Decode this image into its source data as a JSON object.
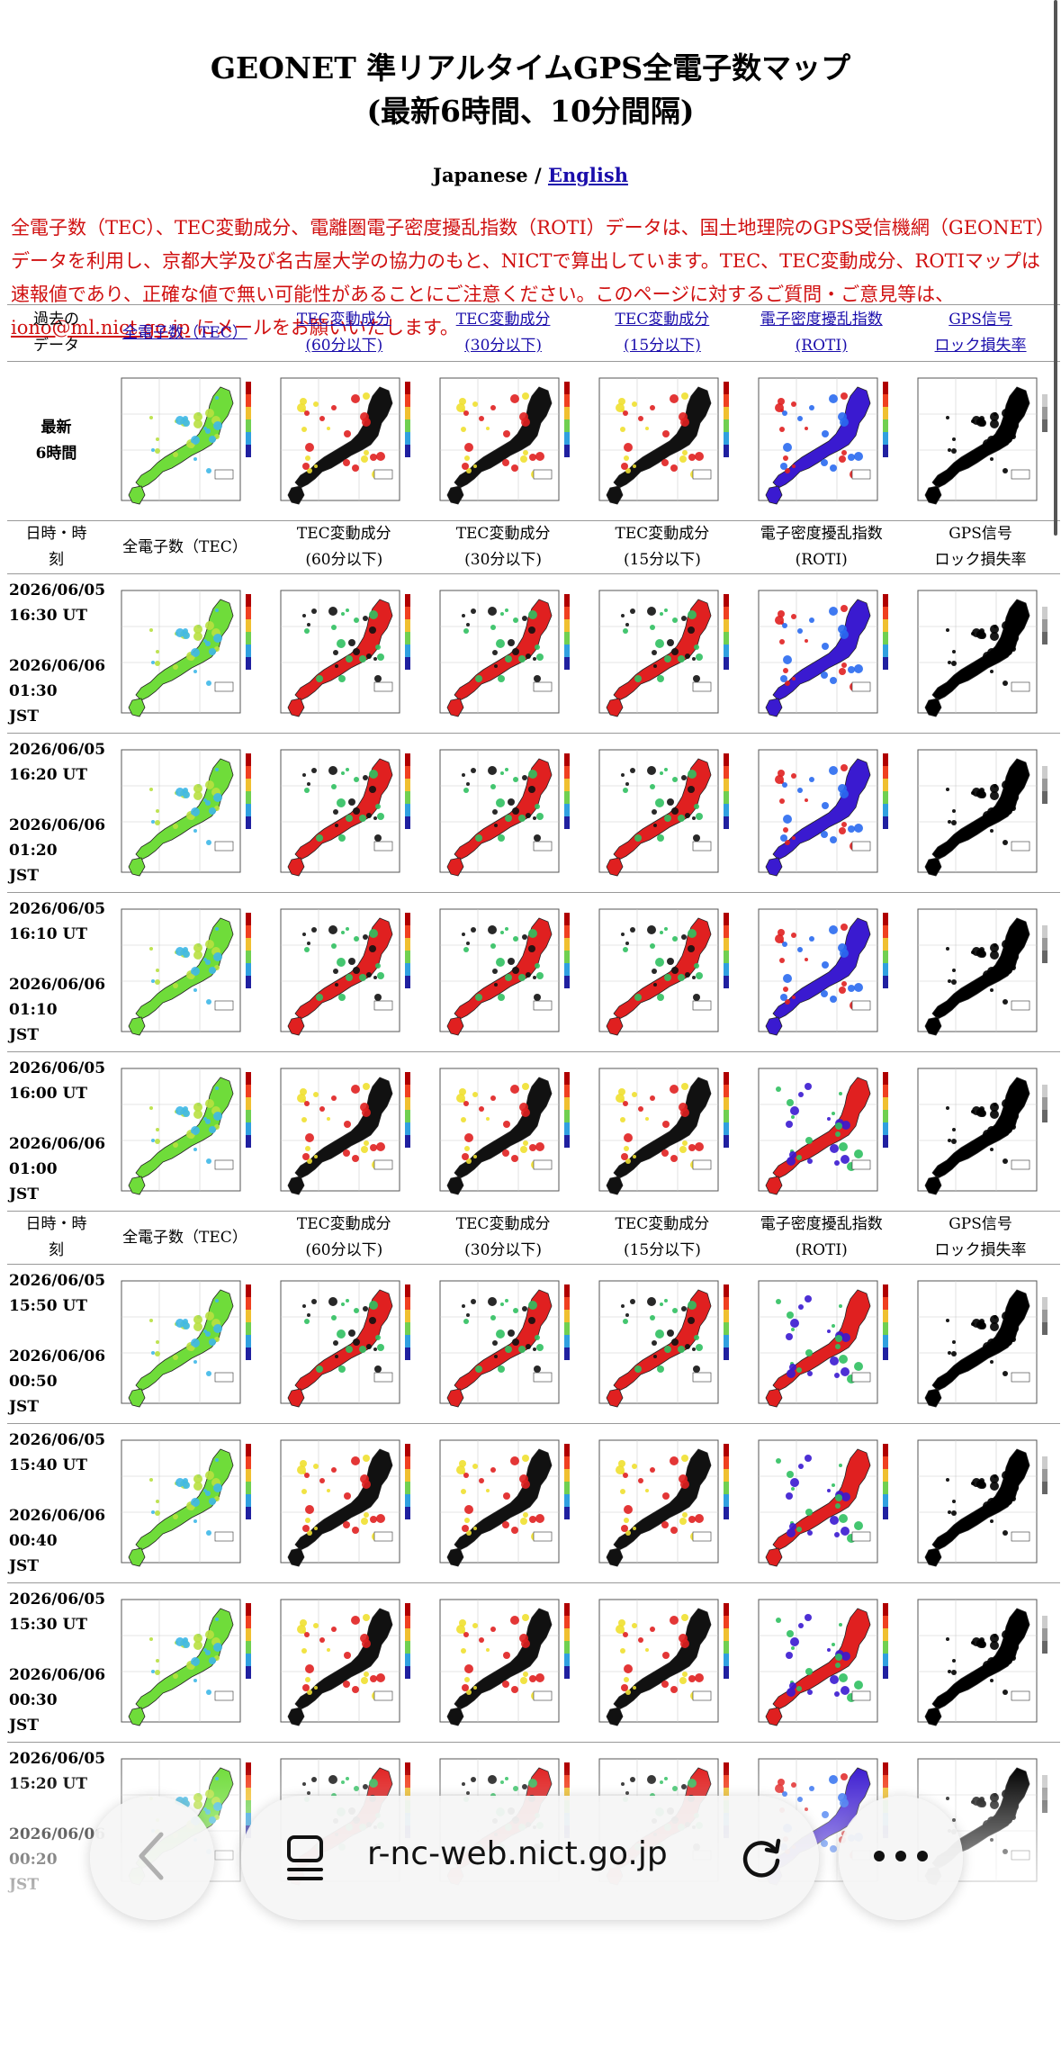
{
  "page": {
    "title_line1": "GEONET 準リアルタイムGPS全電子数マップ",
    "title_line2": "(最新6時間、10分間隔)",
    "lang_japanese": "Japanese / ",
    "lang_english": "English",
    "intro_text": "全電子数（TEC）、TEC変動成分、電離圏電子密度擾乱指数（ROTI）データは、国土地理院のGPS受信機網（GEONET）データを利用し、京都大学及び名古屋大学の協力のもと、NICTで算出しています。TEC、TEC変動成分、ROTIマップは速報値であり、正確な値で無い可能性があることにご注意ください。このページに対するご質問・ご意見等は、",
    "intro_email": "iono@ml.nict.go.jp",
    "intro_tail": " にメールをお願いいたします。"
  },
  "header": {
    "past_data_l1": "過去の",
    "past_data_l2": "データ",
    "tec": "全電子数（TEC）",
    "tec60_l1": "TEC変動成分",
    "tec60_l2": "(60分以下)",
    "tec30_l1": "TEC変動成分",
    "tec30_l2": "(30分以下)",
    "tec15_l1": "TEC変動成分",
    "tec15_l2": "(15分以下)",
    "roti_l1": "電子密度擾乱指数",
    "roti_l2": "(ROTI)",
    "gps_l1": "GPS信号",
    "gps_l2": "ロック損失率"
  },
  "latest": {
    "l1": "最新",
    "l2": "6時間"
  },
  "table_header": {
    "datetime_l1": "日時・時",
    "datetime_l2": "刻",
    "tec": "全電子数（TEC）",
    "tec60_l1": "TEC変動成分",
    "tec60_l2": "(60分以下)",
    "tec30_l1": "TEC変動成分",
    "tec30_l2": "(30分以下)",
    "tec15_l1": "TEC変動成分",
    "tec15_l2": "(15分以下)",
    "roti_l1": "電子密度擾乱指数",
    "roti_l2": "(ROTI)",
    "gps_l1": "GPS信号",
    "gps_l2": "ロック損失率"
  },
  "rows": [
    {
      "ut_date": "2026/06/05",
      "ut_time": "16:30 UT",
      "jst_date": "2026/06/06",
      "jst_time": "01:30",
      "jst": "JST"
    },
    {
      "ut_date": "2026/06/05",
      "ut_time": "16:20 UT",
      "jst_date": "2026/06/06",
      "jst_time": "01:20",
      "jst": "JST"
    },
    {
      "ut_date": "2026/06/05",
      "ut_time": "16:10 UT",
      "jst_date": "2026/06/06",
      "jst_time": "01:10",
      "jst": "JST"
    },
    {
      "ut_date": "2026/06/05",
      "ut_time": "16:00 UT",
      "jst_date": "2026/06/06",
      "jst_time": "01:00",
      "jst": "JST"
    },
    {
      "ut_date": "2026/06/05",
      "ut_time": "15:50 UT",
      "jst_date": "2026/06/06",
      "jst_time": "00:50",
      "jst": "JST"
    },
    {
      "ut_date": "2026/06/05",
      "ut_time": "15:40 UT",
      "jst_date": "2026/06/06",
      "jst_time": "00:40",
      "jst": "JST"
    },
    {
      "ut_date": "2026/06/05",
      "ut_time": "15:30 UT",
      "jst_date": "2026/06/06",
      "jst_time": "00:30",
      "jst": "JST"
    },
    {
      "ut_date": "2026/06/05",
      "ut_time": "15:20 UT",
      "jst_date": "2026/06/06",
      "jst_time": "00:20",
      "jst": "JST"
    }
  ],
  "browser": {
    "url": "r-nc-web.nict.go.jp",
    "back_icon": "chevron-left-icon",
    "reader_icon": "reader-icon",
    "reload_icon": "reload-icon",
    "more_icon": "more-icon"
  },
  "colors": {
    "link": "#1a0dab",
    "notice": "#d01010",
    "tec_map": "#6fdc3a",
    "tec_var_map": "#e02020",
    "roti_map": "#3a1ad0",
    "gps_map": "#000000"
  }
}
